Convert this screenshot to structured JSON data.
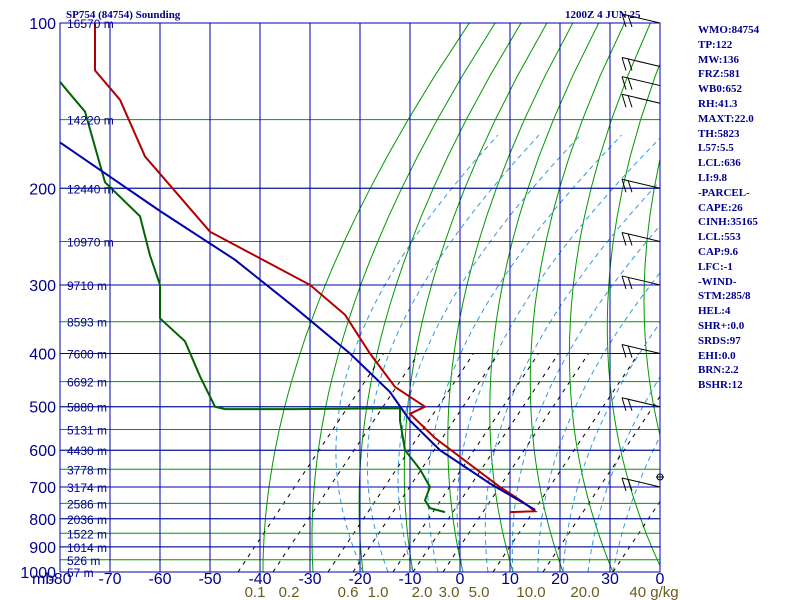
{
  "chart_data": {
    "type": "line",
    "title_left": "SP754 (84754) Sounding",
    "title_right": "1200Z  4 JUN 25",
    "xlabel_prefix": "mb",
    "x_unit_label": "0",
    "ylim": [
      100,
      1000
    ],
    "xlim": [
      -80,
      40
    ],
    "temp_ticks": [
      -80,
      -70,
      -60,
      -50,
      -40,
      -30,
      -20,
      -10,
      0,
      10,
      20,
      30
    ],
    "temp_tick_labels": [
      "-80",
      "-70",
      "-60",
      "-50",
      "-40",
      "-30",
      "-20",
      "-10",
      "0",
      "10",
      "20",
      "30"
    ],
    "pressure_ticks": [
      100,
      200,
      300,
      400,
      500,
      600,
      700,
      800,
      900,
      1000
    ],
    "pressure_tick_labels": [
      "100",
      "200",
      "300",
      "400",
      "500",
      "600",
      "700",
      "800",
      "900",
      "1000"
    ],
    "mixing_ratio_labels": [
      "0.1",
      "0.2",
      "0.6",
      "1.0",
      "2.0",
      "3.0",
      "5.0",
      "10.0",
      "20.0",
      "40 g/kg"
    ],
    "height_labels": [
      {
        "p": 100,
        "label": "16570 m"
      },
      {
        "p": 150,
        "label": "14220 m"
      },
      {
        "p": 200,
        "label": "12440 m"
      },
      {
        "p": 250,
        "label": "10970 m"
      },
      {
        "p": 300,
        "label": "9710 m"
      },
      {
        "p": 350,
        "label": "8593 m"
      },
      {
        "p": 400,
        "label": "7600 m"
      },
      {
        "p": 450,
        "label": "6692 m"
      },
      {
        "p": 500,
        "label": "5880 m"
      },
      {
        "p": 550,
        "label": "5131 m"
      },
      {
        "p": 600,
        "label": "4430 m"
      },
      {
        "p": 650,
        "label": "3778 m"
      },
      {
        "p": 700,
        "label": "3174 m"
      },
      {
        "p": 750,
        "label": "2586 m"
      },
      {
        "p": 800,
        "label": "2036 m"
      },
      {
        "p": 850,
        "label": "1522 m"
      },
      {
        "p": 900,
        "label": "1014 m"
      },
      {
        "p": 950,
        "label": "526 m"
      },
      {
        "p": 1000,
        "label": "57 m"
      }
    ],
    "series": [
      {
        "color": "#b00000",
        "points": [
          [
            -73,
            100
          ],
          [
            -73,
            122
          ],
          [
            -68,
            138
          ],
          [
            -63,
            175
          ],
          [
            -50,
            240
          ],
          [
            -30,
            300
          ],
          [
            -23,
            340
          ],
          [
            -18,
            400
          ],
          [
            -13,
            460
          ],
          [
            -7,
            500
          ],
          [
            -10,
            515
          ],
          [
            -5,
            570
          ],
          [
            8,
            700
          ],
          [
            13,
            750
          ],
          [
            15,
            775
          ],
          [
            10,
            778
          ]
        ]
      },
      {
        "color": "#006400",
        "points": [
          [
            -80,
            128
          ],
          [
            -77,
            138
          ],
          [
            -75,
            145
          ],
          [
            -71,
            195
          ],
          [
            -64,
            225
          ],
          [
            -62,
            265
          ],
          [
            -60,
            300
          ],
          [
            -60,
            345
          ],
          [
            -55,
            380
          ],
          [
            -52,
            440
          ],
          [
            -49,
            500
          ],
          [
            -47,
            505
          ],
          [
            -33,
            505
          ],
          [
            -12,
            503
          ],
          [
            -12,
            530
          ],
          [
            -11,
            600
          ],
          [
            -8,
            650
          ],
          [
            -6,
            700
          ],
          [
            -7,
            740
          ],
          [
            -6,
            765
          ],
          [
            -3,
            778
          ]
        ]
      },
      {
        "color": "#0000aa",
        "points": [
          [
            -80,
            165
          ],
          [
            -60,
            220
          ],
          [
            -45,
            270
          ],
          [
            -33,
            330
          ],
          [
            -22,
            400
          ],
          [
            -14,
            470
          ],
          [
            -10,
            530
          ],
          [
            -4,
            600
          ],
          [
            6,
            690
          ],
          [
            15,
            770
          ]
        ]
      }
    ],
    "wind_barb_pressures": [
      100,
      120,
      130,
      140,
      200,
      250,
      300,
      400,
      500,
      700
    ]
  },
  "stats": [
    "WMO:84754",
    "TP:122",
    "MW:136",
    "FRZ:581",
    "WB0:652",
    "RH:41.3",
    "MAXT:22.0",
    "TH:5823",
    "L57:5.5",
    "LCL:636",
    "LI:9.8",
    "-PARCEL-",
    "CAPE:26",
    "CINH:35165",
    "LCL:553",
    "CAP:9.6",
    "LFC:-1",
    "-WIND-",
    "STM:285/8",
    "HEL:4",
    "SHR+:0.0",
    "SRDS:97",
    "EHI:0.0",
    "BRN:2.2",
    "BSHR:12"
  ],
  "colors": {
    "isobar": "#0000aa",
    "isotherm": "#0000aa",
    "dry_adiabat": "#009900",
    "height_grid": "#009900",
    "mixing_ratio": "#000000",
    "moist_adiabat": "#3399dd",
    "text": "#00008b",
    "mix_label": "#6b5a1e"
  }
}
